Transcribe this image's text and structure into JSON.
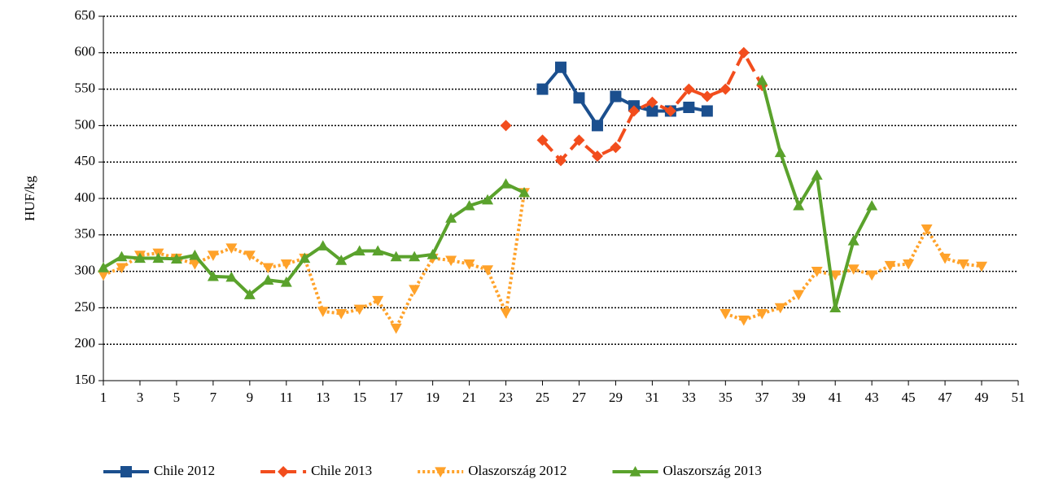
{
  "chart_data": {
    "type": "line",
    "y_label": "HUF/kg",
    "x": [
      1,
      2,
      3,
      4,
      5,
      6,
      7,
      8,
      9,
      10,
      11,
      12,
      13,
      14,
      15,
      16,
      17,
      18,
      19,
      20,
      21,
      22,
      23,
      24,
      25,
      26,
      27,
      28,
      29,
      30,
      31,
      32,
      33,
      34,
      35,
      36,
      37,
      38,
      39,
      40,
      41,
      42,
      43,
      44,
      45,
      46,
      47,
      48,
      49
    ],
    "xlim": [
      1,
      51
    ],
    "xticks": [
      1,
      3,
      5,
      7,
      9,
      11,
      13,
      15,
      17,
      19,
      21,
      23,
      25,
      27,
      29,
      31,
      33,
      35,
      37,
      39,
      41,
      43,
      45,
      47,
      49,
      51
    ],
    "ylim": [
      150,
      650
    ],
    "yticks": [
      150,
      200,
      250,
      300,
      350,
      400,
      450,
      500,
      550,
      600,
      650
    ],
    "grid": true,
    "legend": "bottom",
    "series": [
      {
        "name": "Chile 2012",
        "color": "#1b4f8e",
        "dash": "solid",
        "marker": "square",
        "values": [
          null,
          null,
          null,
          null,
          null,
          null,
          null,
          null,
          null,
          null,
          null,
          null,
          null,
          null,
          null,
          null,
          null,
          null,
          null,
          null,
          null,
          null,
          null,
          null,
          550,
          580,
          538,
          500,
          540,
          527,
          520,
          520,
          525,
          520,
          null,
          null,
          null,
          null,
          null,
          null,
          null,
          null,
          null,
          null,
          null,
          null,
          null,
          null,
          null
        ]
      },
      {
        "name": "Chile 2013",
        "color": "#f24d1d",
        "dash": "dashed",
        "marker": "diamond",
        "values": [
          null,
          null,
          null,
          null,
          null,
          null,
          null,
          null,
          null,
          null,
          null,
          null,
          null,
          null,
          null,
          null,
          null,
          null,
          null,
          null,
          null,
          null,
          500,
          null,
          480,
          452,
          480,
          458,
          470,
          520,
          532,
          520,
          550,
          540,
          550,
          600,
          555,
          null,
          null,
          null,
          null,
          null,
          null,
          null,
          null,
          null,
          null,
          null,
          null
        ]
      },
      {
        "name": "Olaszország 2012",
        "color": "#ffa22a",
        "dash": "dotted",
        "marker": "triangle-down",
        "values": [
          295,
          305,
          322,
          325,
          318,
          310,
          322,
          332,
          322,
          305,
          310,
          318,
          245,
          242,
          248,
          260,
          222,
          275,
          318,
          315,
          310,
          302,
          243,
          408,
          null,
          null,
          null,
          null,
          null,
          null,
          null,
          null,
          null,
          null,
          242,
          233,
          242,
          250,
          268,
          300,
          295,
          303,
          295,
          308,
          310,
          358,
          318,
          310,
          307
        ]
      },
      {
        "name": "Olaszország 2013",
        "color": "#5aa22c",
        "dash": "solid",
        "marker": "triangle-up",
        "values": [
          305,
          320,
          318,
          318,
          317,
          322,
          293,
          292,
          268,
          288,
          285,
          318,
          335,
          315,
          328,
          328,
          320,
          320,
          323,
          373,
          390,
          398,
          420,
          408,
          null,
          null,
          null,
          null,
          null,
          null,
          null,
          null,
          null,
          null,
          null,
          null,
          562,
          463,
          390,
          432,
          250,
          342,
          390,
          null,
          null,
          null,
          null,
          null,
          null
        ]
      }
    ]
  }
}
